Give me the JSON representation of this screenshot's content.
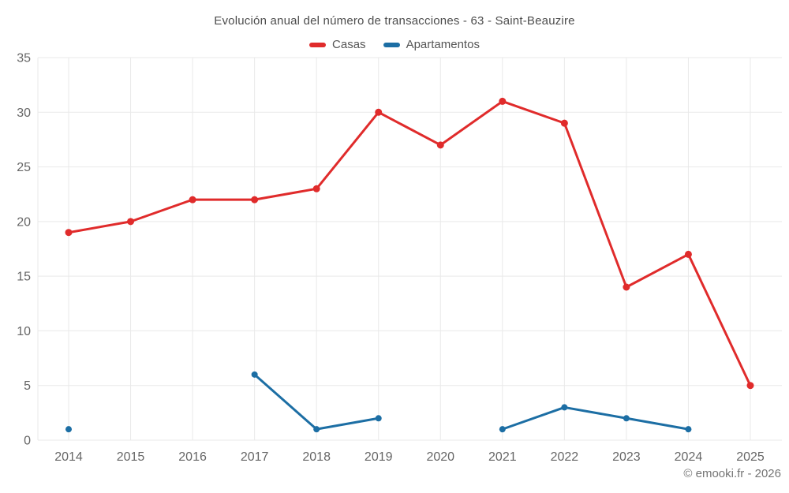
{
  "title": "Evolución anual del número de transacciones - 63 - Saint-Beauzire",
  "footer": "© emooki.fr - 2026",
  "colors": {
    "casas": "#e02b2b",
    "apartamentos": "#1c6ea4",
    "grid": "#e9e9e9",
    "tick_text": "#666666",
    "title_text": "#4d4d4d",
    "footer_text": "#757575"
  },
  "legend": {
    "items": [
      {
        "label": "Casas",
        "color": "#e02b2b"
      },
      {
        "label": "Apartamentos",
        "color": "#1c6ea4"
      }
    ]
  },
  "chart_data": {
    "type": "line",
    "title": "Evolución anual del número de transacciones - 63 - Saint-Beauzire",
    "x": [
      "2014",
      "2015",
      "2016",
      "2017",
      "2018",
      "2019",
      "2020",
      "2021",
      "2022",
      "2023",
      "2024",
      "2025"
    ],
    "series": [
      {
        "name": "Casas",
        "color": "#e02b2b",
        "point_radius": 4.5,
        "values": [
          19,
          20,
          22,
          22,
          23,
          30,
          27,
          31,
          29,
          14,
          17,
          5
        ]
      },
      {
        "name": "Apartamentos",
        "color": "#1c6ea4",
        "point_radius": 4,
        "values": [
          1,
          null,
          null,
          6,
          1,
          2,
          null,
          1,
          3,
          2,
          1,
          null
        ]
      }
    ],
    "xlabel": "",
    "ylabel": "",
    "ylim": [
      0,
      35
    ],
    "yticks": [
      0,
      5,
      10,
      15,
      20,
      25,
      30,
      35
    ],
    "grid": true,
    "legend_position": "top"
  }
}
